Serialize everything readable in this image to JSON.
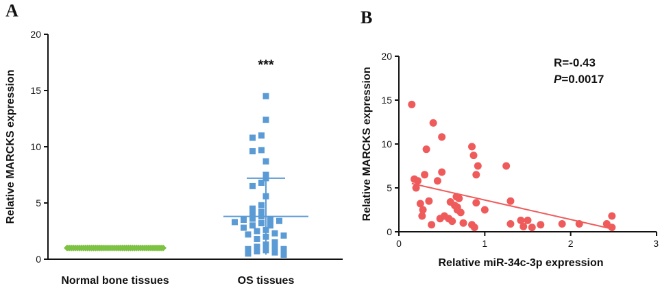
{
  "chart_data": [
    {
      "panel": "A",
      "type": "scatter",
      "ylabel": "Relative MARCKS expression",
      "ylim": [
        0,
        20
      ],
      "yticks": [
        0,
        5,
        10,
        15,
        20
      ],
      "categories": [
        "Normal bone tissues",
        "OS tissues"
      ],
      "significance": "***",
      "colors": {
        "normal": "#7dc242",
        "os": "#5b9bd5",
        "error_bars": "#5b9bd5"
      },
      "groups": [
        {
          "name": "Normal bone tissues",
          "marker": "diamond",
          "values": [
            1,
            1,
            1,
            1,
            1,
            1,
            1,
            1,
            1,
            1,
            1,
            1,
            1,
            1,
            1,
            1,
            1,
            1,
            1,
            1,
            1,
            1,
            1,
            1,
            1,
            1,
            1,
            1,
            1,
            1,
            1,
            1,
            1,
            1,
            1,
            1,
            1,
            1,
            1,
            1,
            1,
            1,
            1,
            1,
            1,
            1,
            1,
            1
          ],
          "mean": 1.0,
          "sd": 0.0
        },
        {
          "name": "OS tissues",
          "marker": "square",
          "values": [
            14.5,
            12.4,
            11.0,
            10.8,
            9.7,
            9.6,
            8.7,
            7.5,
            7.2,
            6.8,
            6.5,
            5.6,
            4.8,
            4.5,
            4.2,
            4.0,
            3.8,
            3.6,
            3.5,
            3.5,
            3.4,
            3.3,
            3.2,
            3.0,
            3.0,
            2.8,
            2.6,
            2.5,
            2.3,
            2.2,
            2.1,
            2.0,
            1.8,
            1.5,
            1.3,
            1.1,
            1.0,
            0.9,
            0.9,
            0.8,
            0.7,
            0.6,
            0.5,
            0.4
          ],
          "mean": 3.8,
          "sd": 3.4
        }
      ]
    },
    {
      "panel": "B",
      "type": "scatter",
      "xlabel": "Relative miR-34c-3p expression",
      "ylabel": "Relative MARCKS expression",
      "xlim": [
        0,
        3
      ],
      "ylim": [
        0,
        20
      ],
      "xticks": [
        0,
        1,
        2,
        3
      ],
      "yticks": [
        0,
        5,
        10,
        15,
        20
      ],
      "stat_r": "R=-0.43",
      "stat_p_label": "P",
      "stat_p_value": "=0.0017",
      "colors": {
        "points": "#ef5b5b",
        "fit": "#ef5b5b"
      },
      "fit_line": {
        "x": [
          0.15,
          2.45
        ],
        "y": [
          5.5,
          0.4
        ]
      },
      "points": [
        [
          0.15,
          14.5
        ],
        [
          0.18,
          6.0
        ],
        [
          0.22,
          5.8
        ],
        [
          0.2,
          5.0
        ],
        [
          0.25,
          3.2
        ],
        [
          0.28,
          2.5
        ],
        [
          0.27,
          1.8
        ],
        [
          0.32,
          9.4
        ],
        [
          0.3,
          6.5
        ],
        [
          0.35,
          3.5
        ],
        [
          0.38,
          0.8
        ],
        [
          0.4,
          12.4
        ],
        [
          0.45,
          5.8
        ],
        [
          0.48,
          1.5
        ],
        [
          0.5,
          10.8
        ],
        [
          0.5,
          6.8
        ],
        [
          0.53,
          1.8
        ],
        [
          0.58,
          1.5
        ],
        [
          0.6,
          3.4
        ],
        [
          0.62,
          1.2
        ],
        [
          0.65,
          3.0
        ],
        [
          0.67,
          4.0
        ],
        [
          0.68,
          2.8
        ],
        [
          0.68,
          2.5
        ],
        [
          0.7,
          3.8
        ],
        [
          0.72,
          2.2
        ],
        [
          0.75,
          1.0
        ],
        [
          0.85,
          9.7
        ],
        [
          0.87,
          8.7
        ],
        [
          0.9,
          6.5
        ],
        [
          0.92,
          7.5
        ],
        [
          0.9,
          3.3
        ],
        [
          0.85,
          0.8
        ],
        [
          0.88,
          0.5
        ],
        [
          1.0,
          2.5
        ],
        [
          1.25,
          7.5
        ],
        [
          1.3,
          3.5
        ],
        [
          1.3,
          0.9
        ],
        [
          1.42,
          1.3
        ],
        [
          1.45,
          0.6
        ],
        [
          1.5,
          1.3
        ],
        [
          1.55,
          0.5
        ],
        [
          1.65,
          0.8
        ],
        [
          1.9,
          0.9
        ],
        [
          2.1,
          0.9
        ],
        [
          2.42,
          0.9
        ],
        [
          2.48,
          1.8
        ],
        [
          2.48,
          0.5
        ]
      ]
    }
  ]
}
